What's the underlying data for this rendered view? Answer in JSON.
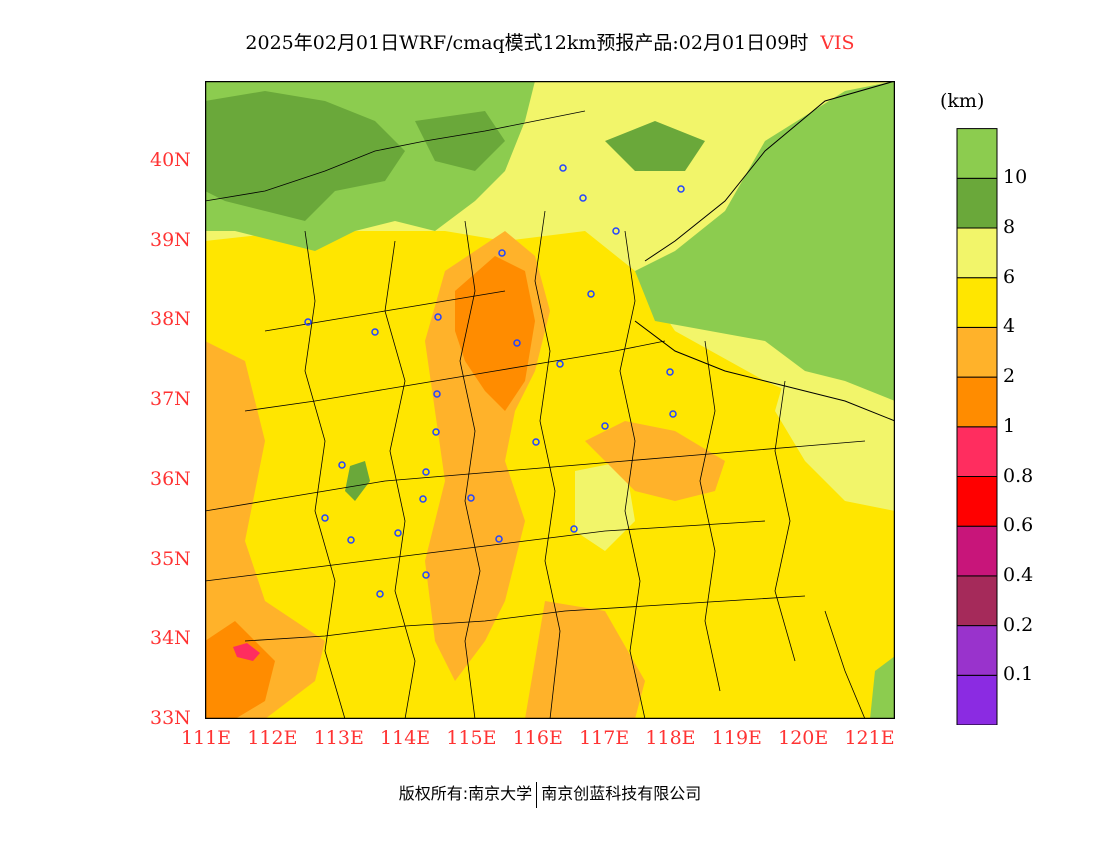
{
  "title": {
    "main": "2025年02月01日WRF/cmaq模式12km预报产品:02月01日09时",
    "variable": "VIS"
  },
  "legend": {
    "unit": "(km)",
    "colors": [
      "#8b2be2",
      "#9933cc",
      "#a52a5a",
      "#c8157a",
      "#ff0000",
      "#ff2d5f",
      "#ff8c00",
      "#ffb22a",
      "#ffe600",
      "#f2f56a",
      "#6aa83a",
      "#8ccc4f"
    ],
    "labels": [
      "0.1",
      "0.2",
      "0.4",
      "0.6",
      "0.8",
      "1",
      "2",
      "4",
      "6",
      "8",
      "10"
    ]
  },
  "axes": {
    "lon_labels": [
      "111E",
      "112E",
      "113E",
      "114E",
      "115E",
      "116E",
      "117E",
      "118E",
      "119E",
      "120E",
      "121E"
    ],
    "lat_labels": [
      "33N",
      "34N",
      "35N",
      "36N",
      "37N",
      "38N",
      "39N",
      "40N"
    ]
  },
  "map": {
    "lon_range": [
      111,
      121.4
    ],
    "lat_range": [
      33,
      41
    ],
    "color_low_vis": "#ff8c00",
    "color_mid_vis": "#ffb22a",
    "color_high_vis": "#ffe600",
    "color_clear": "#8ccc4f",
    "color_clear_dark": "#6aa83a",
    "color_light": "#f2f56a",
    "color_fog": "#ff2d5f",
    "station_color": "#2244ff"
  },
  "footer": {
    "left": "版权所有:南京大学",
    "right": "南京创蓝科技有限公司"
  }
}
